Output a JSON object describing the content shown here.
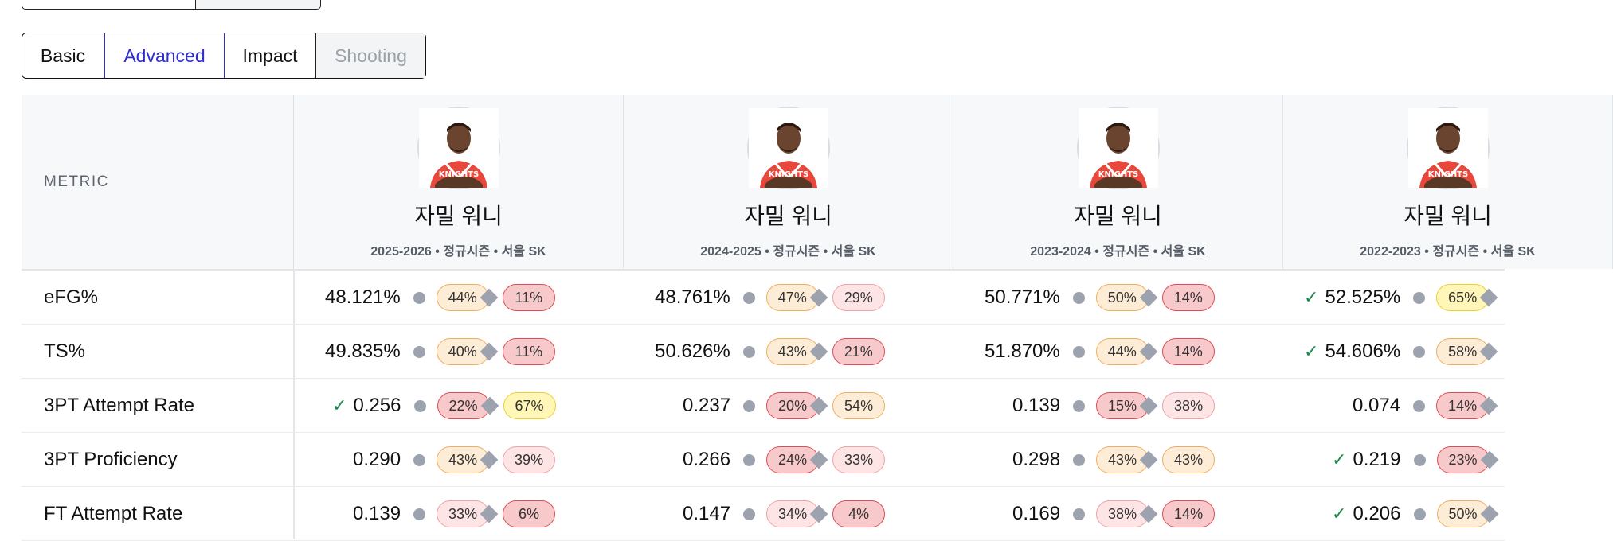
{
  "tabs": [
    {
      "label": "Basic",
      "state": "normal"
    },
    {
      "label": "Advanced",
      "state": "active"
    },
    {
      "label": "Impact",
      "state": "normal"
    },
    {
      "label": "Shooting",
      "state": "disabled"
    }
  ],
  "table": {
    "metric_header": "METRIC",
    "players": [
      {
        "name": "자밀 워니",
        "meta": "2025-2026 • 정규시즌 • 서울 SK"
      },
      {
        "name": "자밀 워니",
        "meta": "2024-2025 • 정규시즌 • 서울 SK"
      },
      {
        "name": "자밀 워니",
        "meta": "2023-2024 • 정규시즌 • 서울 SK"
      },
      {
        "name": "자밀 워니",
        "meta": "2022-2023 • 정규시즌 • 서울 SK"
      }
    ],
    "rows": [
      {
        "metric": "eFG%",
        "cells": [
          {
            "value": "48.121%",
            "check": false,
            "p1": "44%",
            "c1": "orange",
            "p2": "11%",
            "c2": "red"
          },
          {
            "value": "48.761%",
            "check": false,
            "p1": "47%",
            "c1": "orange",
            "p2": "29%",
            "c2": "pink"
          },
          {
            "value": "50.771%",
            "check": false,
            "p1": "50%",
            "c1": "orange",
            "p2": "14%",
            "c2": "red"
          },
          {
            "value": "52.525%",
            "check": true,
            "p1": "65%",
            "c1": "yellow",
            "p2": "",
            "c2": ""
          }
        ]
      },
      {
        "metric": "TS%",
        "cells": [
          {
            "value": "49.835%",
            "check": false,
            "p1": "40%",
            "c1": "orange",
            "p2": "11%",
            "c2": "red"
          },
          {
            "value": "50.626%",
            "check": false,
            "p1": "43%",
            "c1": "orange",
            "p2": "21%",
            "c2": "red"
          },
          {
            "value": "51.870%",
            "check": false,
            "p1": "44%",
            "c1": "orange",
            "p2": "14%",
            "c2": "red"
          },
          {
            "value": "54.606%",
            "check": true,
            "p1": "58%",
            "c1": "orange",
            "p2": "",
            "c2": ""
          }
        ]
      },
      {
        "metric": "3PT Attempt Rate",
        "cells": [
          {
            "value": "0.256",
            "check": true,
            "p1": "22%",
            "c1": "red",
            "p2": "67%",
            "c2": "yellow"
          },
          {
            "value": "0.237",
            "check": false,
            "p1": "20%",
            "c1": "red",
            "p2": "54%",
            "c2": "orange"
          },
          {
            "value": "0.139",
            "check": false,
            "p1": "15%",
            "c1": "red",
            "p2": "38%",
            "c2": "pink"
          },
          {
            "value": "0.074",
            "check": false,
            "p1": "14%",
            "c1": "red",
            "p2": "",
            "c2": ""
          }
        ]
      },
      {
        "metric": "3PT Proficiency",
        "cells": [
          {
            "value": "0.290",
            "check": false,
            "p1": "43%",
            "c1": "orange",
            "p2": "39%",
            "c2": "pink"
          },
          {
            "value": "0.266",
            "check": false,
            "p1": "24%",
            "c1": "red",
            "p2": "33%",
            "c2": "pink"
          },
          {
            "value": "0.298",
            "check": false,
            "p1": "43%",
            "c1": "orange",
            "p2": "43%",
            "c2": "orange"
          },
          {
            "value": "0.219",
            "check": true,
            "p1": "23%",
            "c1": "red",
            "p2": "",
            "c2": ""
          }
        ]
      },
      {
        "metric": "FT Attempt Rate",
        "cells": [
          {
            "value": "0.139",
            "check": false,
            "p1": "33%",
            "c1": "pink",
            "p2": "6%",
            "c2": "red"
          },
          {
            "value": "0.147",
            "check": false,
            "p1": "34%",
            "c1": "pink",
            "p2": "4%",
            "c2": "red"
          },
          {
            "value": "0.169",
            "check": false,
            "p1": "38%",
            "c1": "pink",
            "p2": "14%",
            "c2": "red"
          },
          {
            "value": "0.206",
            "check": true,
            "p1": "50%",
            "c1": "orange",
            "p2": "",
            "c2": ""
          }
        ]
      }
    ]
  },
  "colors": {
    "accent": "#2d2dd1",
    "check": "#1c8a4a",
    "header_bg": "#f7f8fa"
  }
}
